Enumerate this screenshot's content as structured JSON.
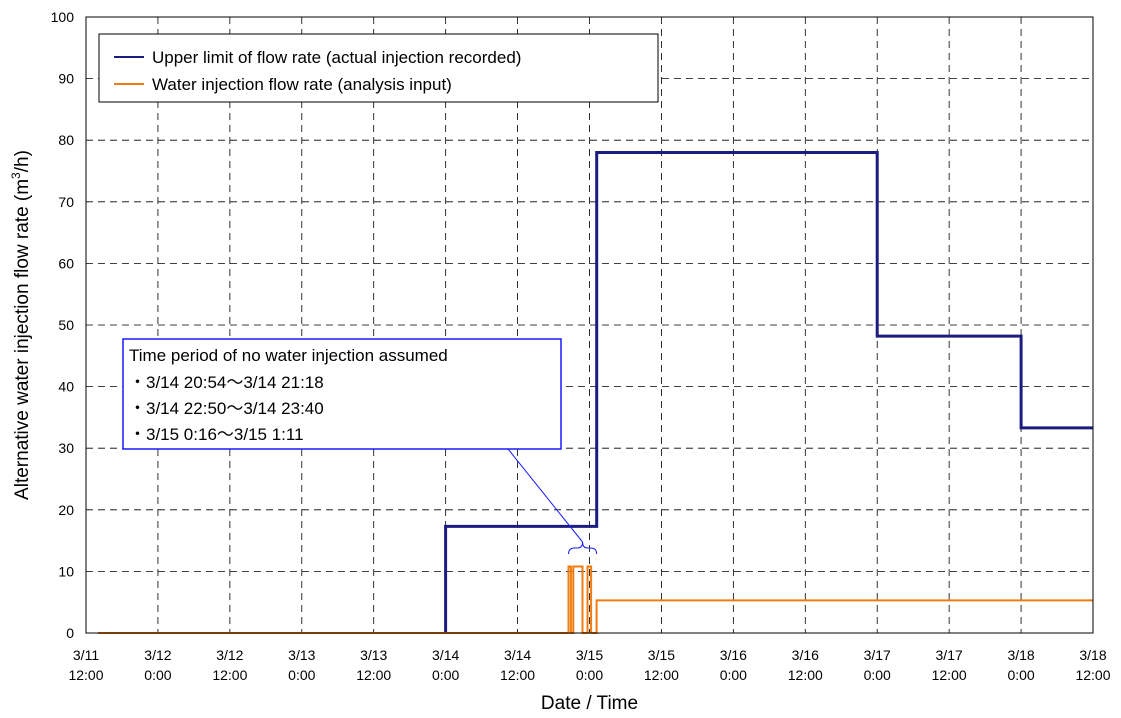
{
  "chart_data": {
    "type": "line",
    "xlabel": "Date / Time",
    "ylabel": "Alternative water injection flow rate (m",
    "ylabel_superscript": "3",
    "ylabel_suffix": "/h)",
    "ylim": [
      0,
      100
    ],
    "y_ticks": [
      "0",
      "10",
      "20",
      "30",
      "40",
      "50",
      "60",
      "70",
      "80",
      "90",
      "100"
    ],
    "x_ticks": [
      {
        "line1": "3/11",
        "line2": "12:00"
      },
      {
        "line1": "3/12",
        "line2": "0:00"
      },
      {
        "line1": "3/12",
        "line2": "12:00"
      },
      {
        "line1": "3/13",
        "line2": "0:00"
      },
      {
        "line1": "3/13",
        "line2": "12:00"
      },
      {
        "line1": "3/14",
        "line2": "0:00"
      },
      {
        "line1": "3/14",
        "line2": "12:00"
      },
      {
        "line1": "3/15",
        "line2": "0:00"
      },
      {
        "line1": "3/15",
        "line2": "12:00"
      },
      {
        "line1": "3/16",
        "line2": "0:00"
      },
      {
        "line1": "3/16",
        "line2": "12:00"
      },
      {
        "line1": "3/17",
        "line2": "0:00"
      },
      {
        "line1": "3/17",
        "line2": "12:00"
      },
      {
        "line1": "3/18",
        "line2": "0:00"
      },
      {
        "line1": "3/18",
        "line2": "12:00"
      }
    ],
    "x_range": [
      "3/11 12:00",
      "3/18 12:00"
    ],
    "grid": true,
    "legend_position": "top-left",
    "series": [
      {
        "name": "Upper limit of flow rate (actual injection recorded)",
        "color": "#1c1c80",
        "step": true,
        "x": [
          "3/14 0:00",
          "3/14 0:00",
          "3/15 1:12",
          "3/15 1:12",
          "3/17 0:00",
          "3/17 0:00",
          "3/18 0:00",
          "3/18 0:00",
          "3/18 12:00"
        ],
        "values": [
          0,
          17.3,
          17.3,
          78,
          78,
          48.2,
          48.2,
          33.3,
          33.3
        ]
      },
      {
        "name": "Water injection flow rate (analysis input)",
        "color": "#f07b10",
        "step": true,
        "x": [
          "3/11 14:00",
          "3/14 20:30",
          "3/14 20:30",
          "3/14 20:54",
          "3/14 20:54",
          "3/14 21:18",
          "3/14 21:18",
          "3/14 22:50",
          "3/14 22:50",
          "3/14 23:40",
          "3/14 23:40",
          "3/15 0:16",
          "3/15 0:16",
          "3/15 1:11",
          "3/15 1:11",
          "3/18 12:00"
        ],
        "values": [
          0,
          0,
          10.8,
          10.8,
          0,
          0,
          10.8,
          10.8,
          0,
          0,
          10.8,
          10.8,
          0,
          0,
          5.3,
          5.3
        ]
      }
    ],
    "annotation": {
      "title": "Time period of no water injection assumed",
      "bullet": "・",
      "items": [
        "3/14 20:54～3/14 21:18",
        "3/14 22:50～3/14 23:40",
        "3/15 0:16～3/15 1:11"
      ],
      "color": "#1a1aff",
      "points_to": {
        "x_start": "3/14 20:30",
        "x_end": "3/15 1:11"
      }
    }
  }
}
